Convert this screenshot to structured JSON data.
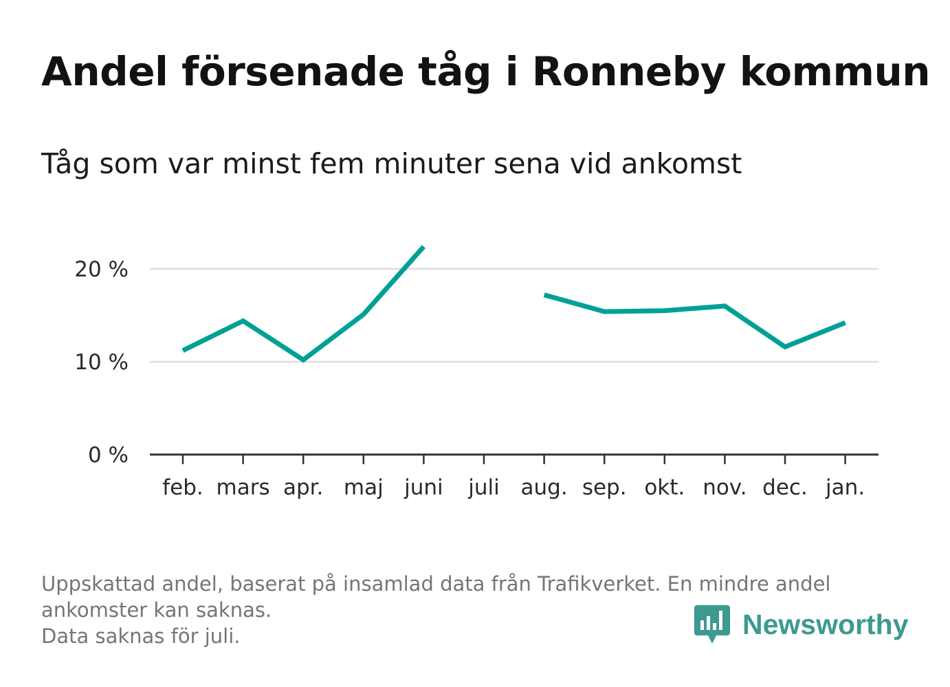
{
  "title": "Andel försenade tåg i Ronneby kommun",
  "subtitle": "Tåg som var minst fem minuter sena vid ankomst",
  "footnote": {
    "line1": "Uppskattad andel, baserat på insamlad data från Trafikverket. En mindre andel",
    "line2": "ankomster kan saknas.",
    "line3": "Data saknas för juli."
  },
  "brand": {
    "name": "Newsworthy",
    "icon": "bar-chart-speech-bubble-icon",
    "color": "#3c9a8f"
  },
  "chart_data": {
    "type": "line",
    "categories": [
      "feb.",
      "mars",
      "apr.",
      "maj",
      "juni",
      "juli",
      "aug.",
      "sep.",
      "okt.",
      "nov.",
      "dec.",
      "jan."
    ],
    "series": [
      {
        "values": [
          11.2,
          14.4,
          10.2,
          15.1,
          22.4,
          null,
          17.2,
          15.4,
          15.5,
          16.0,
          11.6,
          14.2
        ]
      }
    ],
    "yticks": [
      0,
      10,
      20
    ],
    "ytick_labels": [
      "0 %",
      "10 %",
      "20 %"
    ],
    "ylim": [
      0,
      22.5
    ],
    "grid": true,
    "line_color": "#00a096",
    "grid_color": "#dddddd",
    "axis_color": "#333333"
  }
}
